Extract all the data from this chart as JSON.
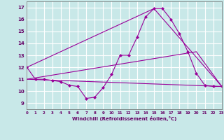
{
  "background_color": "#c8e8e8",
  "grid_color": "#ffffff",
  "line_color": "#990099",
  "marker_color": "#990099",
  "xlabel": "Windchill (Refroidissement éolien,°C)",
  "ylabel_ticks": [
    9,
    10,
    11,
    12,
    13,
    14,
    15,
    16,
    17
  ],
  "xlim": [
    0,
    23
  ],
  "ylim": [
    8.5,
    17.5
  ],
  "line1_x": [
    0,
    1,
    2,
    3,
    4,
    5,
    6,
    7,
    8,
    9,
    10,
    11,
    12,
    13,
    14,
    15,
    16,
    17,
    18,
    19,
    20,
    21,
    22,
    23
  ],
  "line1_y": [
    12,
    11,
    11,
    10.9,
    10.8,
    10.5,
    10.4,
    9.4,
    9.5,
    10.3,
    11.4,
    13.0,
    13.0,
    14.5,
    16.2,
    16.9,
    16.9,
    16.0,
    14.8,
    13.3,
    11.5,
    10.5,
    10.4,
    10.4
  ],
  "line2_x": [
    0,
    15,
    23
  ],
  "line2_y": [
    12,
    16.9,
    10.4
  ],
  "line3_x": [
    0,
    23
  ],
  "line3_y": [
    11.0,
    10.4
  ],
  "line4_x": [
    0,
    20,
    23
  ],
  "line4_y": [
    11.0,
    13.3,
    10.4
  ]
}
